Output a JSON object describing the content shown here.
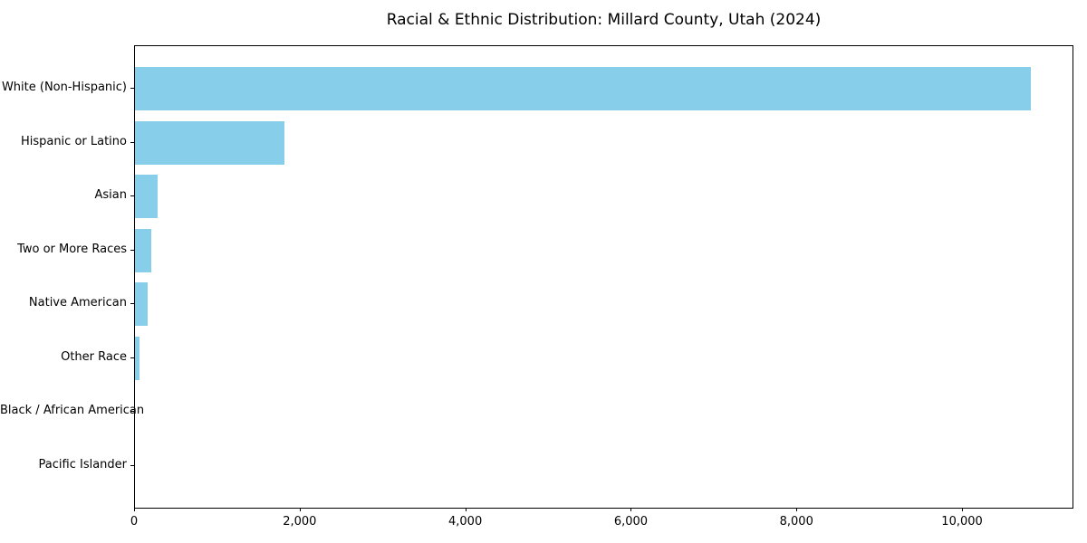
{
  "chart_data": {
    "type": "bar",
    "orientation": "horizontal",
    "title": "Racial & Ethnic Distribution: Millard County, Utah (2024)",
    "categories": [
      "White (Non-Hispanic)",
      "Hispanic or Latino",
      "Asian",
      "Two or More Races",
      "Native American",
      "Other Race",
      "Black / African American",
      "Pacific Islander"
    ],
    "values": [
      10820,
      1805,
      275,
      195,
      155,
      55,
      0,
      0
    ],
    "bar_color": "#87CEEB",
    "xlabel": "",
    "ylabel": "",
    "xlim": [
      0,
      11345
    ],
    "x_ticks": [
      0,
      2000,
      4000,
      6000,
      8000,
      10000
    ],
    "x_tick_labels": [
      "0",
      "2,000",
      "4,000",
      "6,000",
      "8,000",
      "10,000"
    ],
    "grid": false,
    "legend": "none",
    "background_color": "#ffffff",
    "spine_color": "#000000",
    "text_color": "#000000"
  }
}
